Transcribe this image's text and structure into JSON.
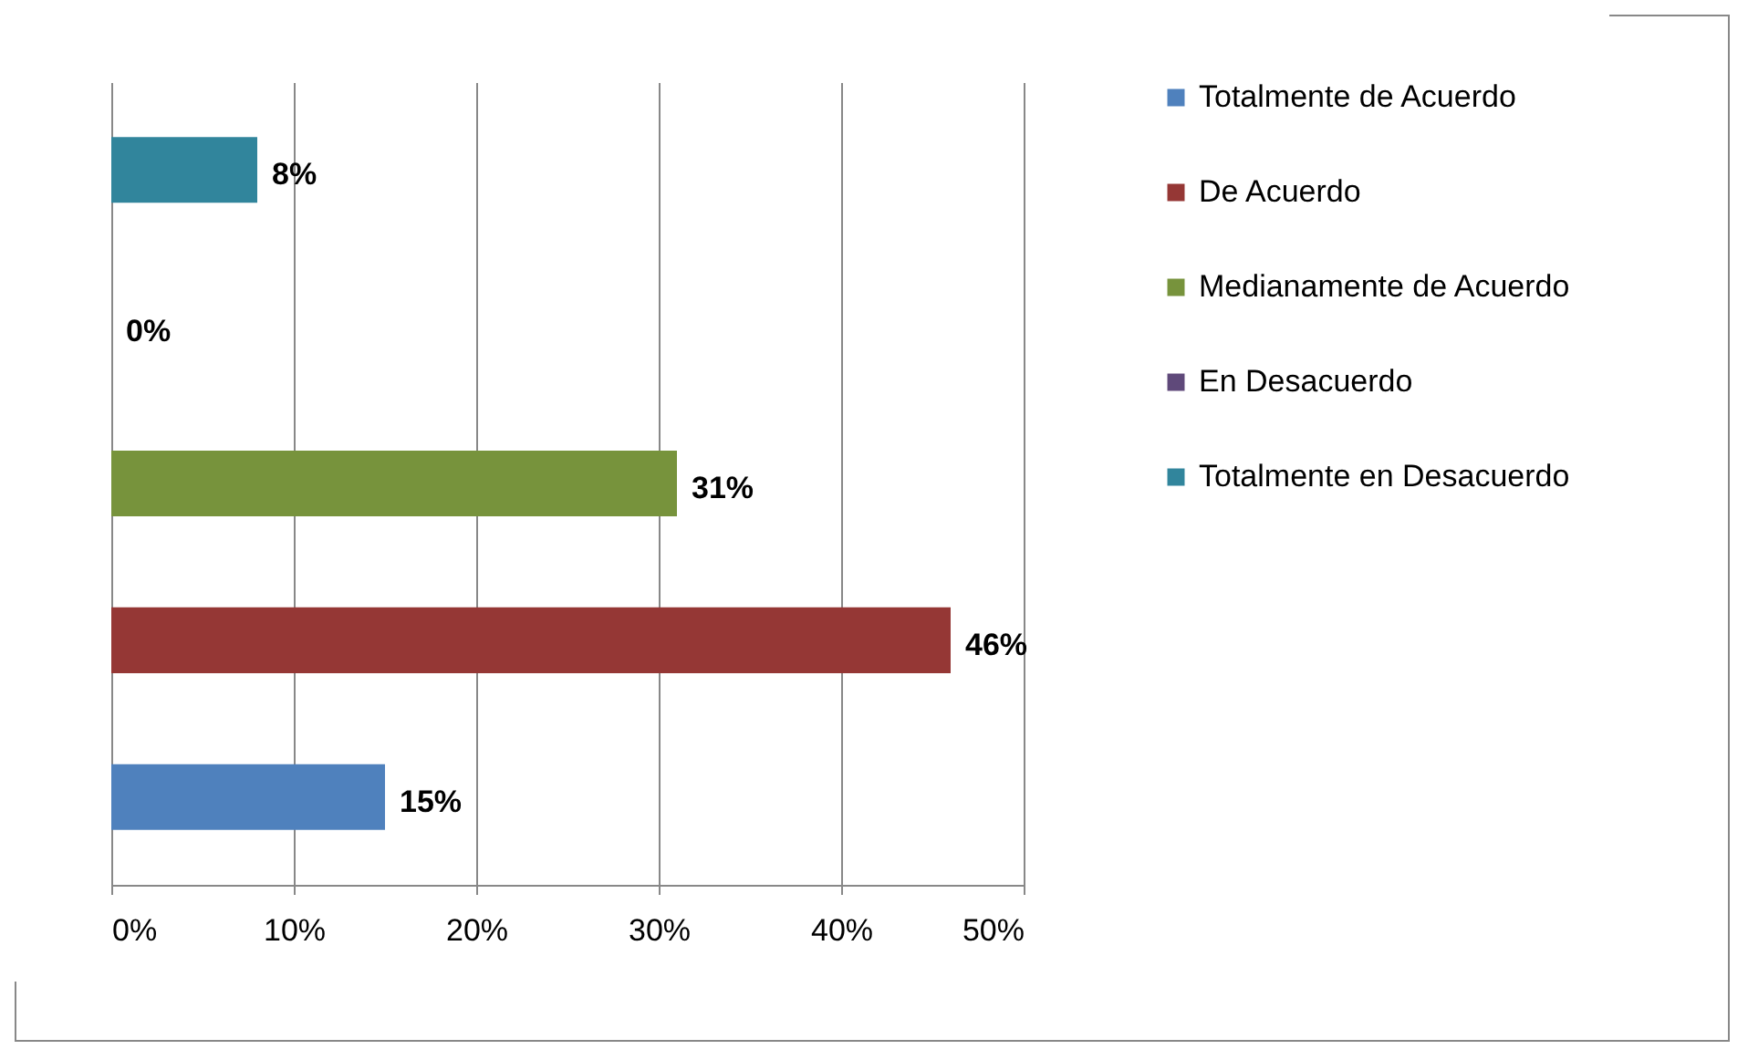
{
  "chart_data": {
    "type": "bar",
    "orientation": "horizontal",
    "categories": [
      null,
      null,
      null,
      null,
      null
    ],
    "series": [
      {
        "name": "Totalmente de Acuerdo",
        "color": "#4f81bd",
        "values": [
          null,
          null,
          null,
          null,
          15
        ],
        "value_labels": [
          null,
          null,
          null,
          null,
          "15%"
        ]
      },
      {
        "name": "De Acuerdo",
        "color": "#953735",
        "values": [
          null,
          null,
          null,
          46,
          null
        ],
        "value_labels": [
          null,
          null,
          null,
          "46%",
          null
        ]
      },
      {
        "name": "Medianamente de Acuerdo",
        "color": "#77933c",
        "values": [
          null,
          null,
          31,
          null,
          null
        ],
        "value_labels": [
          null,
          null,
          "31%",
          null,
          null
        ]
      },
      {
        "name": "En Desacuerdo",
        "color": "#5f497a",
        "values": [
          null,
          0,
          null,
          null,
          null
        ],
        "value_labels": [
          null,
          "0%",
          null,
          null,
          null
        ]
      },
      {
        "name": "Totalmente en Desacuerdo",
        "color": "#31859c",
        "values": [
          8,
          null,
          null,
          null,
          null
        ],
        "value_labels": [
          "8%",
          null,
          null,
          null,
          null
        ]
      }
    ],
    "xlim": [
      0,
      50
    ],
    "xticks": [
      {
        "value": 0,
        "label": "0%"
      },
      {
        "value": 10,
        "label": "10%"
      },
      {
        "value": 20,
        "label": "20%"
      },
      {
        "value": 30,
        "label": "30%"
      },
      {
        "value": 40,
        "label": "40%"
      },
      {
        "value": 50,
        "label": "50%"
      }
    ],
    "grid": "x",
    "legend": "right",
    "tick_labels": "x"
  }
}
